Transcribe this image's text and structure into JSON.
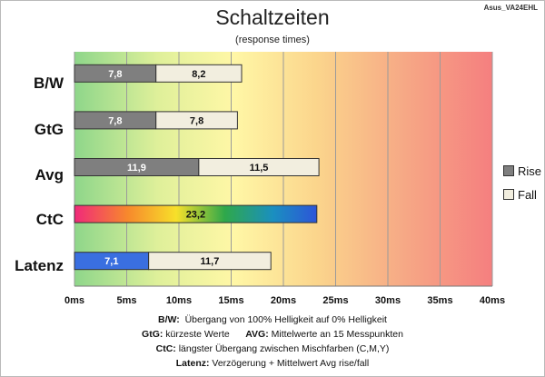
{
  "chart_data": {
    "type": "bar",
    "title": "Schaltzeiten",
    "subtitle": "(response times)",
    "model": "Asus_VA24EHL",
    "categories": [
      "B/W",
      "GtG",
      "Avg",
      "CtC",
      "Latenz"
    ],
    "series": [
      {
        "name": "Rise",
        "values": [
          7.8,
          7.8,
          11.9,
          23.2,
          7.1
        ]
      },
      {
        "name": "Fall",
        "values": [
          8.2,
          7.8,
          11.5,
          null,
          11.7
        ]
      }
    ],
    "stacked": true,
    "orientation": "horizontal",
    "xlim": [
      0,
      40
    ],
    "xticks": [
      "0ms",
      "5ms",
      "10ms",
      "15ms",
      "20ms",
      "25ms",
      "30ms",
      "35ms",
      "40ms"
    ],
    "grid": true,
    "legend_position": "right",
    "colors": {
      "rise": "#7f7f7f",
      "fall": "#f2eedf",
      "latenz_rise": "#3a6fe0"
    }
  },
  "footnotes": [
    {
      "key": "B/W:",
      "text": "Übergang von 100% Helligkeit auf 0% Helligkeit"
    },
    {
      "key": "GtG:",
      "text": "kürzeste Werte",
      "key2": "AVG:",
      "text2": "Mittelwerte an 15 Messpunkten"
    },
    {
      "key": "CtC:",
      "text": "längster Übergang zwischen Mischfarben (C,M,Y)"
    },
    {
      "key": "Latenz:",
      "text": "Verzögerung + Mittelwert Avg rise/fall"
    }
  ]
}
